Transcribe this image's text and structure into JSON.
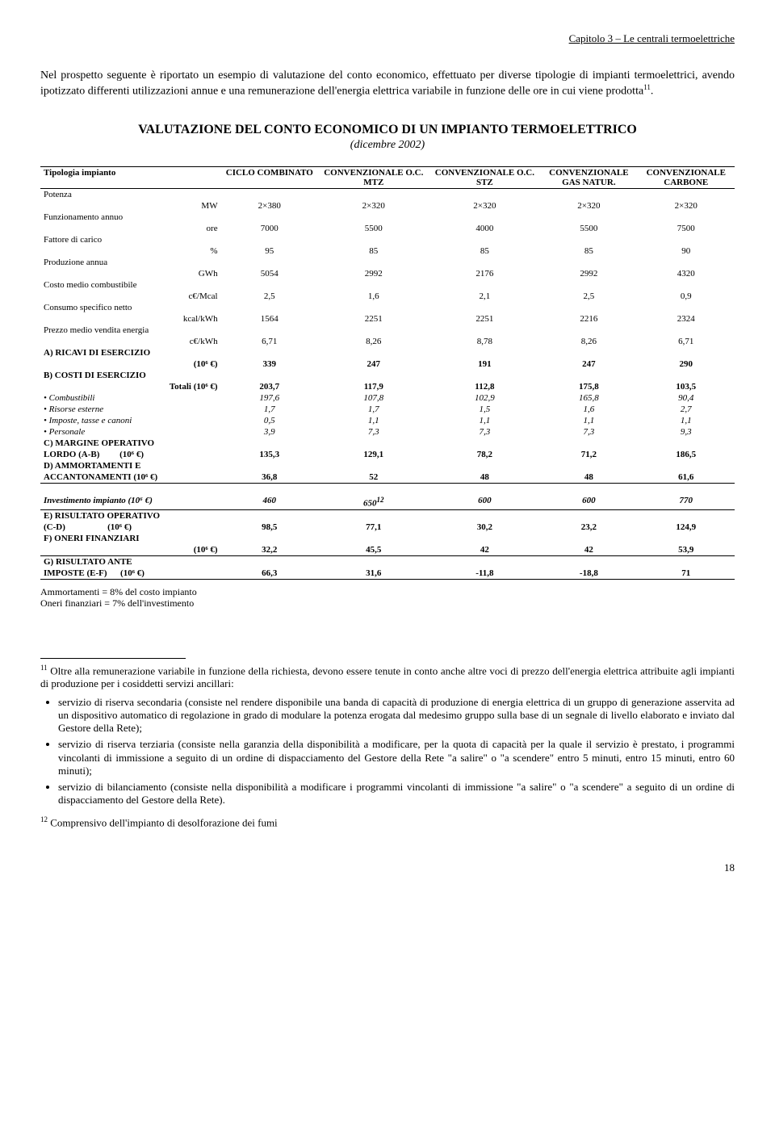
{
  "header": "Capitolo 3 – Le centrali termoelettriche",
  "intro": "Nel prospetto seguente è riportato un esempio di valutazione del conto economico, effettuato per diverse tipologie di impianti termoelettrici, avendo ipotizzato differenti utilizzazioni annue e una remunerazione dell'energia elettrica variabile in funzione delle ore in cui viene prodotta",
  "intro_sup": "11",
  "intro_end": ".",
  "title": "VALUTAZIONE DEL CONTO ECONOMICO DI UN IMPIANTO TERMOELETTRICO",
  "subtitle": "(dicembre 2002)",
  "columns": [
    "Tipologia impianto",
    "CICLO COMBINATO",
    "CONVENZIONALE O.C. MTZ",
    "CONVENZIONALE O.C. STZ",
    "CONVENZIONALE GAS NATUR.",
    "CONVENZIONALE CARBONE"
  ],
  "rows": [
    {
      "label": "Potenza",
      "unit": "MW",
      "v": [
        "2×380",
        "2×320",
        "2×320",
        "2×320",
        "2×320"
      ]
    },
    {
      "label": "Funzionamento annuo",
      "unit": "ore",
      "v": [
        "7000",
        "5500",
        "4000",
        "5500",
        "7500"
      ]
    },
    {
      "label": "Fattore di carico",
      "unit": "%",
      "v": [
        "95",
        "85",
        "85",
        "85",
        "90"
      ]
    },
    {
      "label": "Produzione annua",
      "unit": "GWh",
      "v": [
        "5054",
        "2992",
        "2176",
        "2992",
        "4320"
      ]
    },
    {
      "label": "Costo medio combustibile",
      "unit": "c€/Mcal",
      "v": [
        "2,5",
        "1,6",
        "2,1",
        "2,5",
        "0,9"
      ]
    },
    {
      "label": "Consumo specifico netto",
      "unit": "kcal/kWh",
      "v": [
        "1564",
        "2251",
        "2251",
        "2216",
        "2324"
      ]
    },
    {
      "label": "Prezzo medio vendita energia",
      "unit": "c€/kWh",
      "v": [
        "6,71",
        "8,26",
        "8,78",
        "8,26",
        "6,71"
      ]
    }
  ],
  "sectionA": {
    "label": "A) RICAVI DI ESERCIZIO",
    "unit": "(10⁶ €)",
    "v": [
      "339",
      "247",
      "191",
      "247",
      "290"
    ]
  },
  "sectionB": {
    "label": "B) COSTI DI ESERCIZIO",
    "totali": {
      "label": "Totali (10⁶ €)",
      "v": [
        "203,7",
        "117,9",
        "112,8",
        "175,8",
        "103,5"
      ]
    },
    "items": [
      {
        "label": "Combustibili",
        "v": [
          "197,6",
          "107,8",
          "102,9",
          "165,8",
          "90,4"
        ]
      },
      {
        "label": "Risorse esterne",
        "v": [
          "1,7",
          "1,7",
          "1,5",
          "1,6",
          "2,7"
        ]
      },
      {
        "label": "Imposte, tasse e canoni",
        "v": [
          "0,5",
          "1,1",
          "1,1",
          "1,1",
          "1,1"
        ]
      },
      {
        "label": "Personale",
        "v": [
          "3,9",
          "7,3",
          "7,3",
          "7,3",
          "9,3"
        ]
      }
    ]
  },
  "sectionC": {
    "label": "C) MARGINE OPERATIVO",
    "sub": "LORDO  (A-B)",
    "unit": "(10⁶ €)",
    "v": [
      "135,3",
      "129,1",
      "78,2",
      "71,2",
      "186,5"
    ]
  },
  "sectionD": {
    "label": "D) AMMORTAMENTI E",
    "sub": "ACCANTONAMENTI (10⁶ €)",
    "v": [
      "36,8",
      "52",
      "48",
      "48",
      "61,6"
    ]
  },
  "invest": {
    "label": "Investimento impianto (10⁶ €)",
    "v": [
      "460",
      "650",
      "600",
      "600",
      "770"
    ],
    "sup": "12"
  },
  "sectionE": {
    "label": "E) RISULTATO OPERATIVO",
    "sub": "(C-D)",
    "unit": "(10⁶ €)",
    "v": [
      "98,5",
      "77,1",
      "30,2",
      "23,2",
      "124,9"
    ]
  },
  "sectionF": {
    "label": "F) ONERI FINANZIARI",
    "unit": "(10⁶ €)",
    "v": [
      "32,2",
      "45,5",
      "42",
      "42",
      "53,9"
    ]
  },
  "sectionG": {
    "label": "G) RISULTATO ANTE",
    "sub": "IMPOSTE  (E-F)",
    "unit": "(10⁶ €)",
    "v": [
      "66,3",
      "31,6",
      "-11,8",
      "-18,8",
      "71"
    ]
  },
  "notes": [
    "Ammortamenti = 8% del costo impianto",
    "Oneri finanziari = 7% dell'investimento"
  ],
  "fn11_sup": "11",
  "fn11": " Oltre alla remunerazione variabile in funzione della richiesta, devono essere tenute in conto anche altre voci di prezzo dell'energia elettrica attribuite agli impianti di produzione per i cosiddetti servizi ancillari:",
  "fn11_items": [
    "servizio di riserva secondaria (consiste nel rendere disponibile una banda di capacità di produzione di energia elettrica di un gruppo di generazione asservita ad un dispositivo automatico di regolazione in grado di modulare la potenza erogata dal medesimo gruppo sulla base di un segnale di livello elaborato e inviato dal Gestore della Rete);",
    "servizio di riserva terziaria (consiste nella garanzia della disponibilità a modificare, per la quota di capacità per la quale il servizio è prestato, i programmi vincolanti di immissione a seguito di un ordine di dispacciamento del Gestore della Rete \"a salire\" o \"a scendere\" entro 5 minuti, entro 15 minuti, entro 60 minuti);",
    "servizio di bilanciamento (consiste nella disponibilità a modificare i programmi vincolanti di immissione \"a salire\" o \"a scendere\" a seguito di un ordine di dispacciamento del Gestore della Rete)."
  ],
  "fn12_sup": "12",
  "fn12": " Comprensivo dell'impianto di desolforazione dei fumi",
  "page": "18"
}
